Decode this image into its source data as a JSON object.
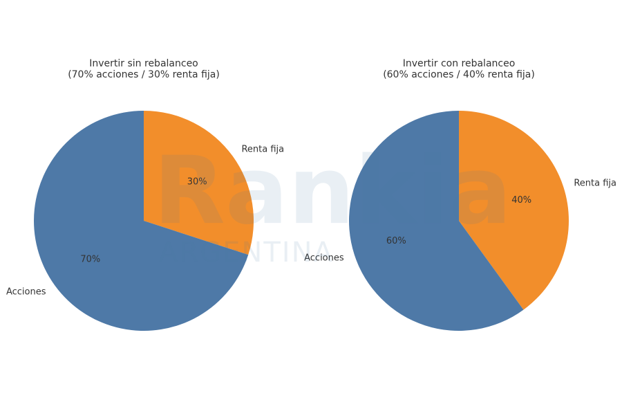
{
  "chart_data": [
    {
      "type": "pie",
      "title": [
        "Invertir sin rebalanceo",
        "(70% acciones / 30% renta fija)"
      ],
      "categories": [
        "Renta fija",
        "Acciones"
      ],
      "values": [
        30,
        70
      ],
      "value_labels": [
        "30%",
        "70%"
      ],
      "colors": [
        "#f28e2b",
        "#4e79a7"
      ]
    },
    {
      "type": "pie",
      "title": [
        "Invertir con rebalanceo",
        "(60% acciones / 40% renta fija)"
      ],
      "categories": [
        "Renta fija",
        "Acciones"
      ],
      "values": [
        40,
        60
      ],
      "value_labels": [
        "40%",
        "60%"
      ],
      "colors": [
        "#f28e2b",
        "#4e79a7"
      ]
    }
  ],
  "watermark": {
    "brand": "Rankia",
    "region": "ARGENTINA"
  }
}
